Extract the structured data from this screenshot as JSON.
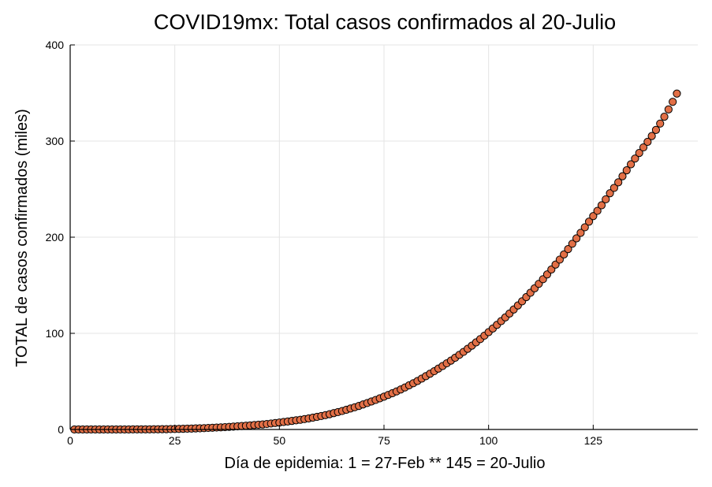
{
  "chart_data": {
    "type": "scatter",
    "title": "COVID19mx: Total casos confirmados al 20-Julio",
    "xlabel": "Día de epidemia: 1 = 27-Feb ** 145 = 20-Julio",
    "ylabel": "TOTAL de casos confirmados (miles)",
    "xlim": [
      0,
      150
    ],
    "ylim": [
      0,
      400
    ],
    "xticks": [
      0,
      25,
      50,
      75,
      100,
      125
    ],
    "yticks": [
      0,
      100,
      200,
      300,
      400
    ],
    "grid": true,
    "legend": "none",
    "marker_color": "#e26f46",
    "series": [
      {
        "x": [
          1,
          2,
          3,
          4,
          5,
          6,
          7,
          8,
          9,
          10,
          11,
          12,
          13,
          14,
          15,
          16,
          17,
          18,
          19,
          20,
          21,
          22,
          23,
          24,
          25,
          26,
          27,
          28,
          29,
          30,
          31,
          32,
          33,
          34,
          35,
          36,
          37,
          38,
          39,
          40,
          41,
          42,
          43,
          44,
          45,
          46,
          47,
          48,
          49,
          50,
          51,
          52,
          53,
          54,
          55,
          56,
          57,
          58,
          59,
          60,
          61,
          62,
          63,
          64,
          65,
          66,
          67,
          68,
          69,
          70,
          71,
          72,
          73,
          74,
          75,
          76,
          77,
          78,
          79,
          80,
          81,
          82,
          83,
          84,
          85,
          86,
          87,
          88,
          89,
          90,
          91,
          92,
          93,
          94,
          95,
          96,
          97,
          98,
          99,
          100,
          101,
          102,
          103,
          104,
          105,
          106,
          107,
          108,
          109,
          110,
          111,
          112,
          113,
          114,
          115,
          116,
          117,
          118,
          119,
          120,
          121,
          122,
          123,
          124,
          125,
          126,
          127,
          128,
          129,
          130,
          131,
          132,
          133,
          134,
          135,
          136,
          137,
          138,
          139,
          140,
          141,
          142,
          143,
          144,
          145
        ],
        "y": [
          0.0,
          0.0,
          0.0,
          0.0,
          0.0,
          0.0,
          0.0,
          0.0,
          0.0,
          0.0,
          0.0,
          0.0,
          0.0,
          0.0,
          0.1,
          0.1,
          0.1,
          0.1,
          0.1,
          0.2,
          0.2,
          0.3,
          0.3,
          0.4,
          0.5,
          0.6,
          0.7,
          0.8,
          0.9,
          1.1,
          1.2,
          1.4,
          1.6,
          1.8,
          2.0,
          2.2,
          2.4,
          2.7,
          3.0,
          3.3,
          3.6,
          3.9,
          4.2,
          4.6,
          4.9,
          5.2,
          5.7,
          6.2,
          6.7,
          7.2,
          7.8,
          8.3,
          8.9,
          9.5,
          10.1,
          10.8,
          11.5,
          12.3,
          13.1,
          14.0,
          14.9,
          15.9,
          17.0,
          18.1,
          19.2,
          20.5,
          21.8,
          23.1,
          24.5,
          26.0,
          27.5,
          29.1,
          30.7,
          32.4,
          34.1,
          35.9,
          37.7,
          39.6,
          41.6,
          43.7,
          45.9,
          48.1,
          50.4,
          52.9,
          55.4,
          58.0,
          60.6,
          63.3,
          66.0,
          68.8,
          71.6,
          74.6,
          77.6,
          80.7,
          83.9,
          87.2,
          90.6,
          94.0,
          97.6,
          101.2,
          105.0,
          108.8,
          112.7,
          116.6,
          120.6,
          124.8,
          129.0,
          133.3,
          137.7,
          142.2,
          146.8,
          151.5,
          156.3,
          161.3,
          166.4,
          171.5,
          176.7,
          182.1,
          187.6,
          193.2,
          198.8,
          204.5,
          210.3,
          216.2,
          221.9,
          227.4,
          233.2,
          239.4,
          245.7,
          251.3,
          257.1,
          263.4,
          269.6,
          275.8,
          281.8,
          287.6,
          293.4,
          299.2,
          305.2,
          311.6,
          318.2,
          325.3,
          332.9,
          340.8,
          349.4
        ]
      }
    ]
  }
}
